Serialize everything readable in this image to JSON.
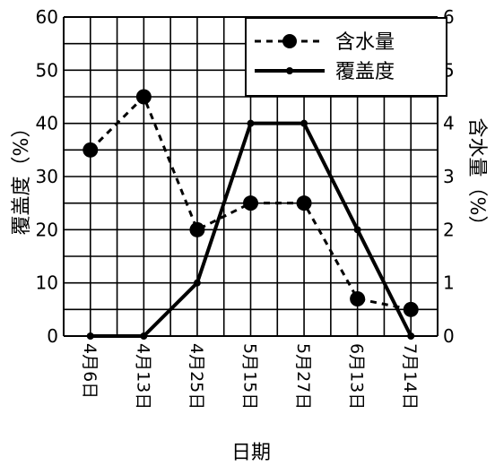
{
  "chart_data": {
    "type": "line",
    "title": "",
    "categories": [
      "4月6日",
      "4月13日",
      "4月25日",
      "5月15日",
      "5月27日",
      "6月13日",
      "7月14日"
    ],
    "xlabel": "日期",
    "ylabel_left": "覆盖度（%）",
    "ylabel_right": "含水量（%）",
    "ylim_left": [
      0,
      60
    ],
    "ylim_right": [
      0,
      6
    ],
    "yticks_left": [
      "0",
      "10",
      "20",
      "30",
      "40",
      "50",
      "60"
    ],
    "yticks_right": [
      "0",
      "1",
      "2",
      "3",
      "4",
      "5",
      "6"
    ],
    "grid": true,
    "legend_position": "top-right",
    "series": [
      {
        "name": "含水量",
        "axis": "right",
        "style": "dashed",
        "marker": "large-dot",
        "color": "#000000",
        "values": [
          3.5,
          4.5,
          2.0,
          2.5,
          2.5,
          0.7,
          0.5
        ]
      },
      {
        "name": "覆盖度",
        "axis": "left",
        "style": "solid",
        "marker": "small-dot",
        "color": "#000000",
        "values": [
          0,
          0,
          10,
          40,
          40,
          20,
          0
        ]
      }
    ]
  }
}
